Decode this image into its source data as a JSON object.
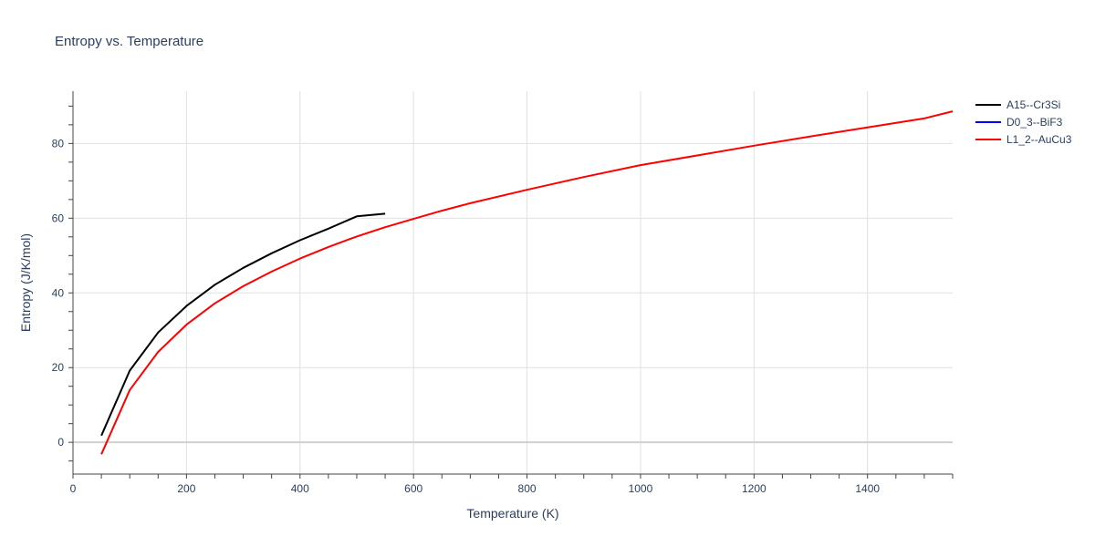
{
  "chart_data": {
    "type": "line",
    "title": "Entropy vs. Temperature",
    "xlabel": "Temperature (K)",
    "ylabel": "Entropy (J/K/mol)",
    "xlim": [
      0,
      1550
    ],
    "ylim": [
      -8.5,
      94
    ],
    "xticks": [
      0,
      200,
      400,
      600,
      800,
      1000,
      1200,
      1400
    ],
    "yticks": [
      0,
      20,
      40,
      60,
      80
    ],
    "grid": true,
    "legend_position": "top-right",
    "series": [
      {
        "name": "A15--Cr3Si",
        "color": "#000000",
        "x": [
          50,
          100,
          150,
          200,
          250,
          300,
          350,
          400,
          450,
          500,
          550
        ],
        "y": [
          1.8,
          19.2,
          29.4,
          36.5,
          42.2,
          46.7,
          50.6,
          54.1,
          57.2,
          60.5,
          61.2
        ]
      },
      {
        "name": "D0_3--BiF3",
        "color": "#0000ff",
        "x": [],
        "y": []
      },
      {
        "name": "L1_2--AuCu3",
        "color": "#ff0000",
        "x": [
          50,
          100,
          150,
          200,
          250,
          300,
          350,
          400,
          450,
          500,
          550,
          600,
          650,
          700,
          800,
          900,
          1000,
          1100,
          1200,
          1300,
          1400,
          1500,
          1550
        ],
        "y": [
          -3.2,
          14.0,
          24.2,
          31.5,
          37.2,
          41.8,
          45.7,
          49.2,
          52.3,
          55.1,
          57.6,
          59.8,
          62.0,
          64.0,
          67.6,
          71.0,
          74.2,
          76.8,
          79.4,
          81.9,
          84.3,
          86.7,
          88.6
        ]
      }
    ]
  }
}
